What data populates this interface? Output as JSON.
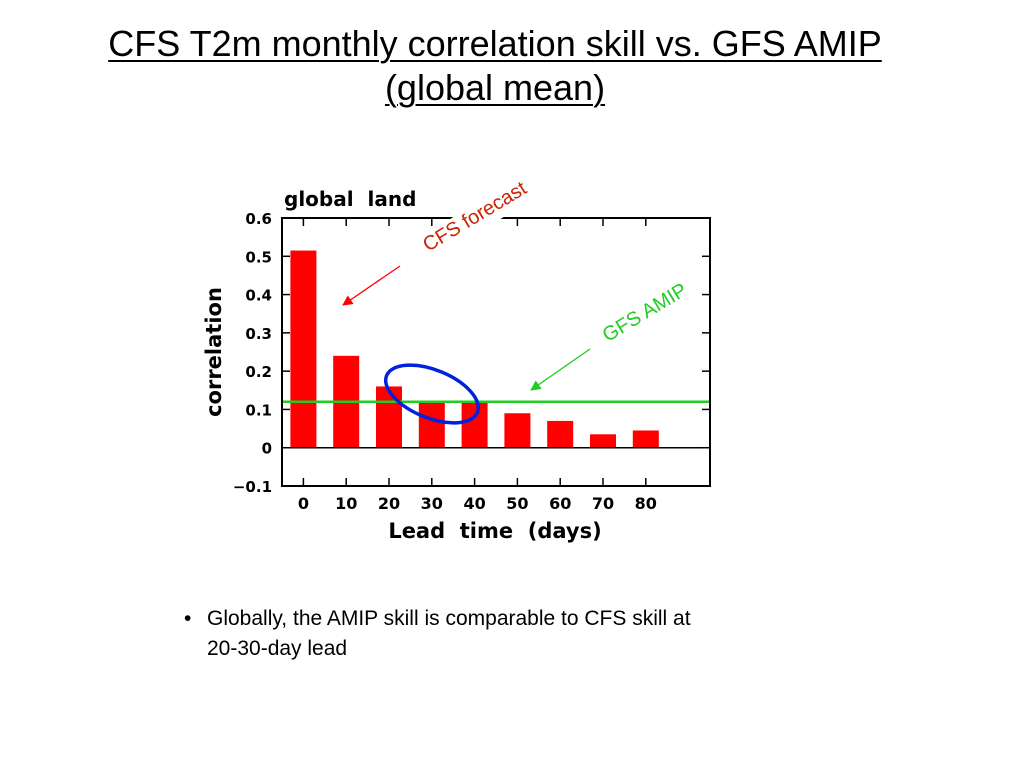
{
  "slide": {
    "title_line1": "CFS T2m monthly correlation skill vs. GFS AMIP",
    "title_line2": "(global mean)",
    "bullet_line1": "Globally, the AMIP skill is comparable to CFS skill at",
    "bullet_line2": "20-30-day lead"
  },
  "chart_data": {
    "type": "bar",
    "title": "global  land",
    "xlabel": "Lead  time  (days)",
    "ylabel": "correlation",
    "x": [
      0,
      10,
      20,
      30,
      40,
      50,
      60,
      70,
      80
    ],
    "x_ticks": [
      "0",
      "10",
      "20",
      "30",
      "40",
      "50",
      "60",
      "70",
      "80"
    ],
    "xlim": [
      -5,
      95
    ],
    "ylim": [
      -0.1,
      0.6
    ],
    "y_ticks": [
      "0.6",
      "0.5",
      "0.4",
      "0.3",
      "0.2",
      "0.1",
      "0",
      "−0.1"
    ],
    "y_tick_values": [
      0.6,
      0.5,
      0.4,
      0.3,
      0.2,
      0.1,
      0,
      -0.1
    ],
    "grid": false,
    "series": [
      {
        "name": "CFS forecast",
        "color": "#ff0000",
        "values": [
          0.515,
          0.24,
          0.16,
          0.12,
          0.12,
          0.09,
          0.07,
          0.035,
          0.045
        ]
      }
    ],
    "reference_lines": [
      {
        "name": "GFS AMIP",
        "value": 0.12,
        "color": "#22cc22"
      }
    ],
    "annotations": [
      {
        "text": "CFS forecast",
        "color": "#cc2200"
      },
      {
        "text": "GFS AMIP",
        "color": "#22cc22"
      }
    ],
    "highlight_color": "#0022dd",
    "zero_line_color": "#000000"
  }
}
